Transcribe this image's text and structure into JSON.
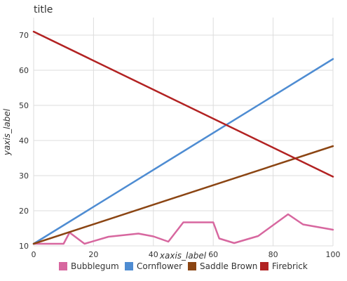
{
  "chart_data": {
    "type": "line",
    "title": "title",
    "xlabel": "xaxis_label",
    "ylabel": "yaxis_label",
    "xlim": [
      0,
      100
    ],
    "ylim": [
      10,
      75
    ],
    "xticks": [
      0,
      20,
      40,
      60,
      80,
      100
    ],
    "yticks": [
      10,
      20,
      30,
      40,
      50,
      60,
      70
    ],
    "grid": true,
    "legend_position": "bottom",
    "series": [
      {
        "name": "Bubblegum",
        "color": "#d7679f",
        "x": [
          0,
          10,
          12,
          17,
          25,
          35,
          40,
          45,
          50,
          60,
          62,
          67,
          75,
          85,
          90,
          100
        ],
        "y": [
          10.6,
          10.6,
          13.8,
          10.6,
          12.6,
          13.5,
          12.7,
          11.2,
          16.7,
          16.7,
          12.1,
          10.8,
          12.8,
          19.0,
          16.1,
          14.6
        ]
      },
      {
        "name": "Cornflower",
        "color": "#4e8cd2",
        "x": [
          0,
          100
        ],
        "y": [
          10.6,
          63.2
        ]
      },
      {
        "name": "Saddle Brown",
        "color": "#8b4513",
        "x": [
          0,
          100
        ],
        "y": [
          10.6,
          38.4
        ]
      },
      {
        "name": "Firebrick",
        "color": "#b22222",
        "x": [
          0,
          100
        ],
        "y": [
          71.0,
          29.7
        ]
      }
    ]
  }
}
